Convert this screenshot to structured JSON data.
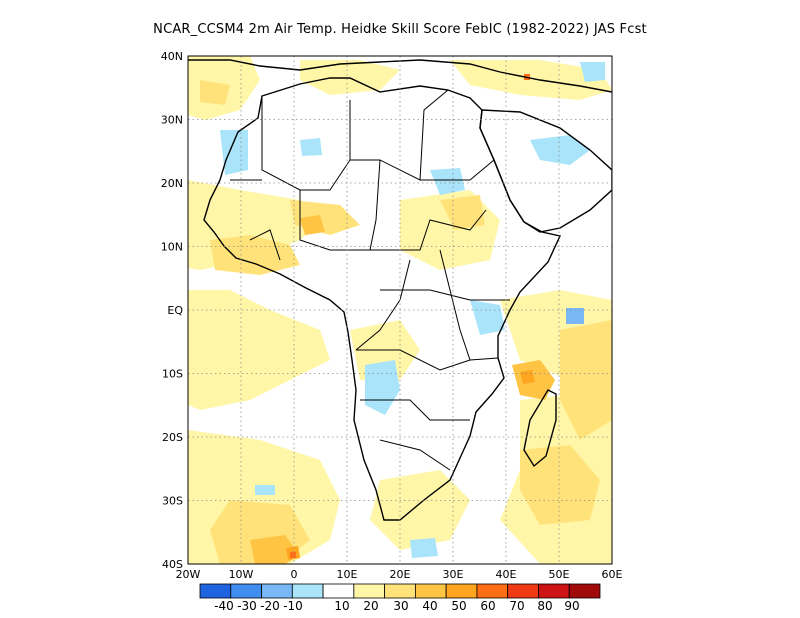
{
  "title": "NCAR_CCSM4  2m Air Temp. Heidke Skill Score FebIC (1982-2022) JAS Fcst",
  "map": {
    "lat_labels": [
      "40N",
      "30N",
      "20N",
      "10N",
      "EQ",
      "10S",
      "20S",
      "30S",
      "40S"
    ],
    "lon_labels": [
      "20W",
      "10W",
      "0",
      "10E",
      "20E",
      "30E",
      "40E",
      "50E",
      "60E"
    ],
    "extent": {
      "lon": [
        -20,
        60
      ],
      "lat": [
        -40,
        40
      ]
    },
    "grid": "dotted"
  },
  "colorbar": {
    "labels": [
      "-40",
      "-30",
      "-20",
      "-10",
      "10",
      "20",
      "30",
      "40",
      "50",
      "60",
      "70",
      "80",
      "90"
    ],
    "colors": [
      "#1f63e0",
      "#3f8ef0",
      "#7ab8f5",
      "#a9e4fb",
      "#ffffff",
      "#fff6a8",
      "#ffe37a",
      "#ffc444",
      "#ffa51f",
      "#ff6e14",
      "#f03a14",
      "#cc1414",
      "#a00a0a"
    ]
  },
  "palette": {
    "pale_yellow": "#fff6a8",
    "yellow": "#ffe37a",
    "gold": "#ffc444",
    "orange": "#ffa51f",
    "light_blue": "#a9e4fb",
    "mid_blue": "#7ab8f5"
  }
}
